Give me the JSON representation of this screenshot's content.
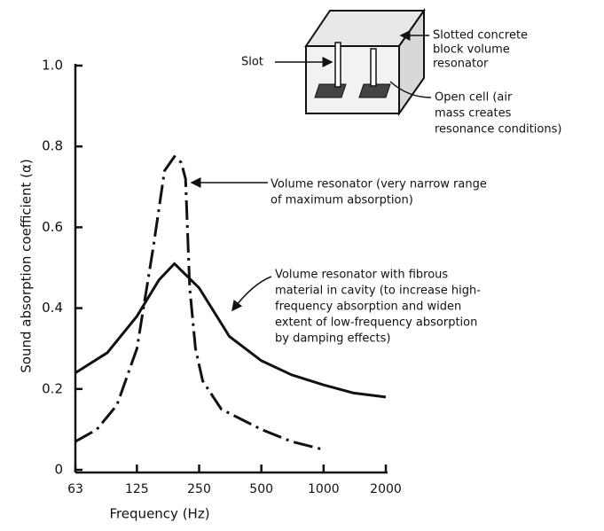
{
  "chart_data": {
    "type": "line",
    "x_label": "Frequency (Hz)",
    "y_label": "Sound absorption coefficient (α)",
    "xscale": "log",
    "xlim": [
      63,
      2000
    ],
    "xticks": [
      63,
      125,
      250,
      500,
      1000,
      2000
    ],
    "ylim": [
      0,
      1
    ],
    "yticks": [
      0,
      0.2,
      0.4,
      0.6,
      0.8,
      {
        "value": 1,
        "label": "1.0"
      }
    ],
    "series": [
      {
        "color": "#111111",
        "linestyle": "dashdot",
        "x": [
          63,
          80,
          100,
          125,
          150,
          170,
          190,
          205,
          215,
          225,
          240,
          260,
          320,
          500,
          700,
          1000
        ],
        "values": [
          0.07,
          0.1,
          0.16,
          0.3,
          0.55,
          0.74,
          0.775,
          0.76,
          0.72,
          0.45,
          0.3,
          0.22,
          0.15,
          0.1,
          0.07,
          0.05
        ]
      },
      {
        "color": "#111111",
        "linestyle": "solid",
        "x": [
          63,
          90,
          125,
          160,
          190,
          250,
          350,
          500,
          700,
          1000,
          1400,
          2000
        ],
        "values": [
          0.24,
          0.29,
          0.38,
          0.47,
          0.51,
          0.45,
          0.33,
          0.27,
          0.235,
          0.21,
          0.19,
          0.18
        ]
      }
    ],
    "annotations": [
      {
        "lines": [
          "Volume resonator (very narrow range",
          "of maximum absorption)"
        ]
      },
      {
        "lines": [
          "Volume resonator with fibrous",
          "material in cavity (to increase high-",
          "frequency absorption and widen",
          "extent of low-frequency absorption",
          "by damping effects)"
        ]
      },
      {
        "lines": [
          "Slot"
        ]
      },
      {
        "lines": [
          "Slotted concrete",
          "block volume",
          "resonator"
        ]
      },
      {
        "lines": [
          "Open cell (air",
          "mass creates",
          "resonance conditions)"
        ]
      }
    ]
  }
}
